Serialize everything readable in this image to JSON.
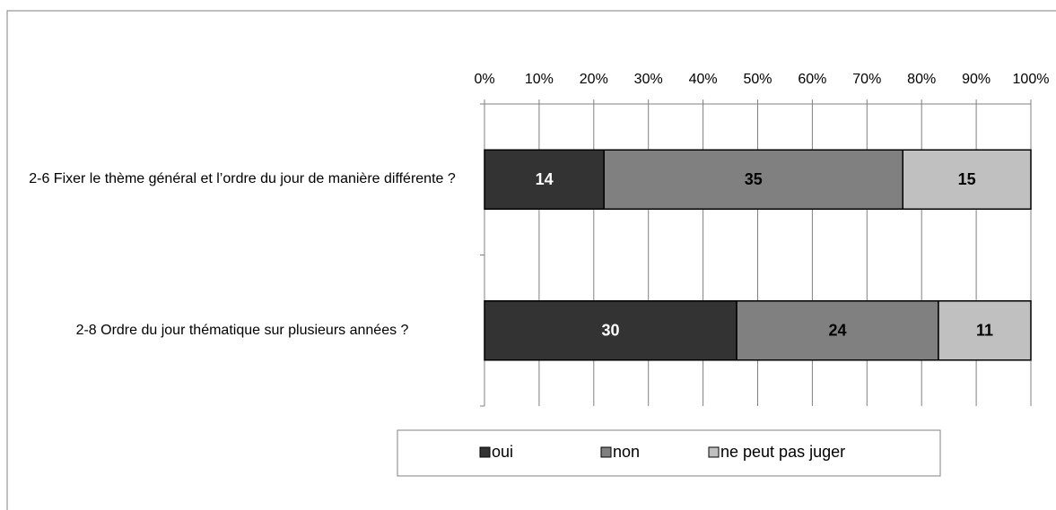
{
  "chart_data": {
    "type": "bar",
    "orientation": "horizontal",
    "stacking": "percent",
    "categories": [
      "2-6 Fixer le thème général et l’ordre du jour de manière différente ?",
      "2-8 Ordre du jour thématique sur plusieurs années ?"
    ],
    "series": [
      {
        "name": "oui",
        "color": "#333333",
        "values": [
          14,
          30
        ]
      },
      {
        "name": "non",
        "color": "#808080",
        "values": [
          35,
          24
        ]
      },
      {
        "name": "ne peut pas juger",
        "color": "#c0c0c0",
        "values": [
          15,
          11
        ]
      }
    ],
    "xlim": [
      0,
      100
    ],
    "xticks": [
      {
        "value": 0,
        "label": "0%"
      },
      {
        "value": 10,
        "label": "10%"
      },
      {
        "value": 20,
        "label": "20%"
      },
      {
        "value": 30,
        "label": "30%"
      },
      {
        "value": 40,
        "label": "40%"
      },
      {
        "value": 50,
        "label": "50%"
      },
      {
        "value": 60,
        "label": "60%"
      },
      {
        "value": 70,
        "label": "70%"
      },
      {
        "value": 80,
        "label": "80%"
      },
      {
        "value": 90,
        "label": "90%"
      },
      {
        "value": 100,
        "label": "100%"
      }
    ],
    "grid": true,
    "legend": "bottom"
  }
}
